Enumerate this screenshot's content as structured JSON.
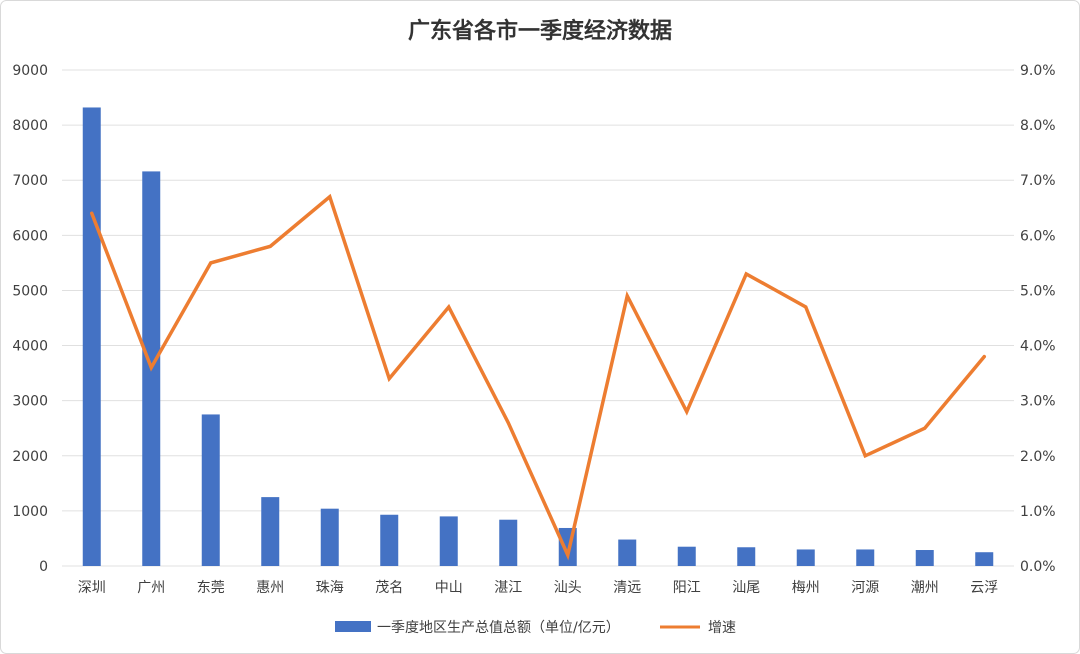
{
  "chart_data": {
    "type": "bar",
    "title": "广东省各市一季度经济数据",
    "categories": [
      "深圳",
      "广州",
      "东莞",
      "惠州",
      "珠海",
      "茂名",
      "中山",
      "湛江",
      "汕头",
      "清远",
      "阳江",
      "汕尾",
      "梅州",
      "河源",
      "潮州",
      "云浮"
    ],
    "series": [
      {
        "name": "一季度地区生产总值总额（单位/亿元）",
        "type": "bar",
        "axis": "left",
        "color": "#4472C4",
        "values": [
          8320,
          7160,
          2750,
          1250,
          1040,
          930,
          900,
          840,
          690,
          480,
          350,
          340,
          300,
          300,
          290,
          250
        ]
      },
      {
        "name": "增速",
        "type": "line",
        "axis": "right",
        "color": "#ED7D31",
        "values": [
          6.4,
          3.6,
          5.5,
          5.8,
          6.7,
          3.4,
          4.7,
          2.6,
          0.2,
          4.9,
          2.8,
          5.3,
          4.7,
          2.0,
          2.5,
          3.8
        ]
      }
    ],
    "y_left": {
      "range": [
        0,
        9000
      ],
      "ticks": [
        "0",
        "1000",
        "2000",
        "3000",
        "4000",
        "5000",
        "6000",
        "7000",
        "8000",
        "9000"
      ]
    },
    "y_right": {
      "range": [
        0,
        9
      ],
      "ticks": [
        "0.0%",
        "1.0%",
        "2.0%",
        "3.0%",
        "4.0%",
        "5.0%",
        "6.0%",
        "7.0%",
        "8.0%",
        "9.0%"
      ]
    },
    "grid": true,
    "legend": "bottom"
  }
}
